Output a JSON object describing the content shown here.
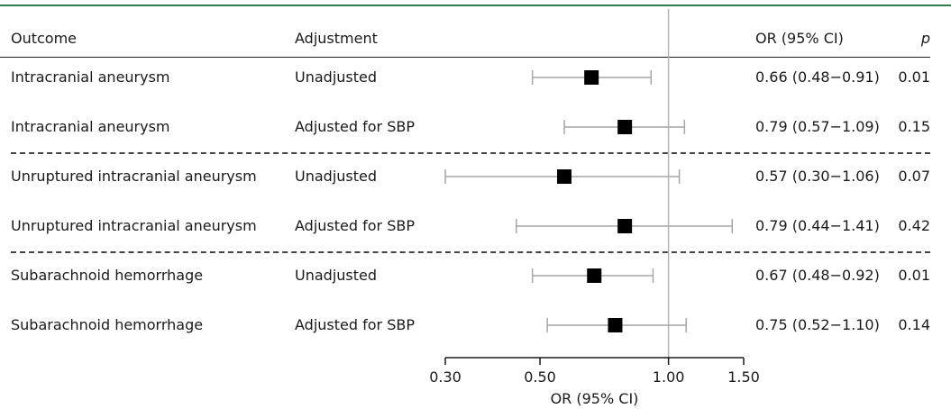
{
  "columns": {
    "outcome": "Outcome",
    "adjustment": "Adjustment",
    "or": "OR (95% CI)",
    "p": "p"
  },
  "chart_data": {
    "type": "forest",
    "xlabel": "OR (95% CI)",
    "xscale": "log",
    "xlim": [
      0.3,
      1.5
    ],
    "xticks": [
      "0.30",
      "0.50",
      "1.00",
      "1.50"
    ],
    "reference_line": 1.0,
    "rows": [
      {
        "outcome": "Intracranial aneurysm",
        "adjustment": "Unadjusted",
        "or": 0.66,
        "lo": 0.48,
        "hi": 0.91,
        "or_text": "0.66 (0.48−0.91)",
        "p": "0.01"
      },
      {
        "outcome": "Intracranial aneurysm",
        "adjustment": "Adjusted for SBP",
        "or": 0.79,
        "lo": 0.57,
        "hi": 1.09,
        "or_text": "0.79 (0.57−1.09)",
        "p": "0.15"
      },
      {
        "outcome": "Unruptured intracranial aneurysm",
        "adjustment": "Unadjusted",
        "or": 0.57,
        "lo": 0.3,
        "hi": 1.06,
        "or_text": "0.57 (0.30−1.06)",
        "p": "0.07"
      },
      {
        "outcome": "Unruptured intracranial aneurysm",
        "adjustment": "Adjusted for SBP",
        "or": 0.79,
        "lo": 0.44,
        "hi": 1.41,
        "or_text": "0.79 (0.44−1.41)",
        "p": "0.42"
      },
      {
        "outcome": "Subarachnoid hemorrhage",
        "adjustment": "Unadjusted",
        "or": 0.67,
        "lo": 0.48,
        "hi": 0.92,
        "or_text": "0.67 (0.48−0.92)",
        "p": "0.01"
      },
      {
        "outcome": "Subarachnoid hemorrhage",
        "adjustment": "Adjusted for SBP",
        "or": 0.75,
        "lo": 0.52,
        "hi": 1.1,
        "or_text": "0.75 (0.52−1.10)",
        "p": "0.14"
      }
    ]
  }
}
